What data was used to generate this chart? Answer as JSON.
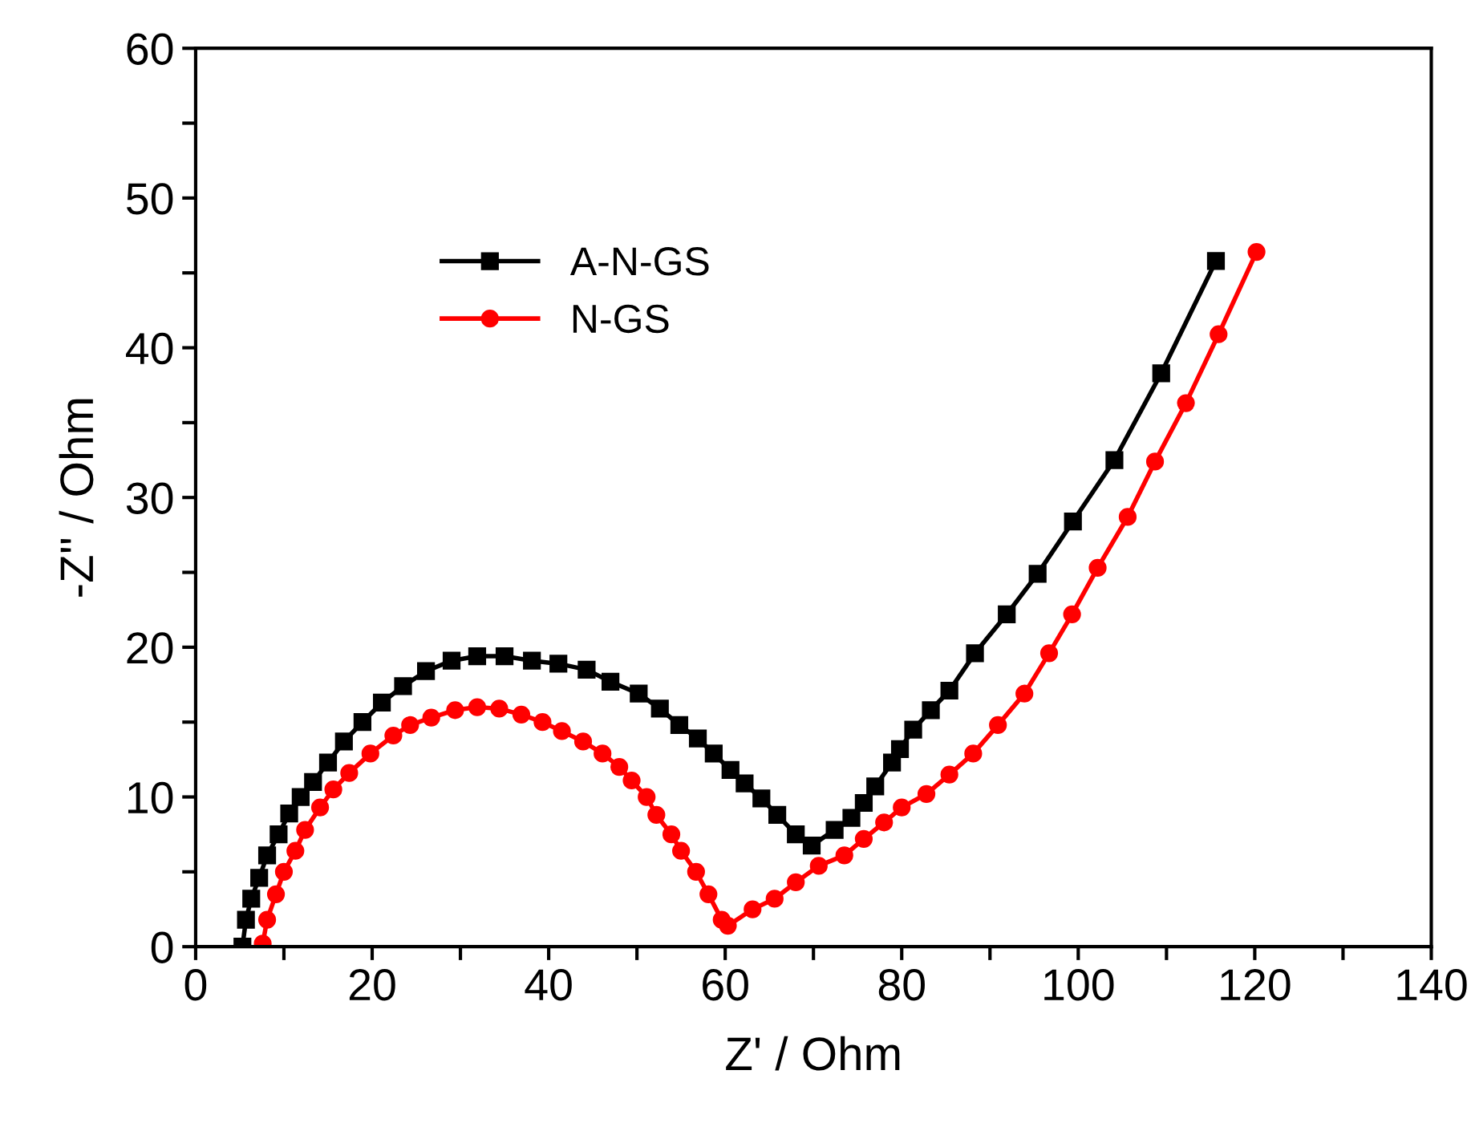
{
  "chart_data": {
    "type": "line",
    "xlabel": "Z' / Ohm",
    "ylabel": "-Z'' / Ohm",
    "xlim": [
      0,
      140
    ],
    "ylim": [
      0,
      60
    ],
    "xticks": [
      0,
      {
        "value": 10,
        "label": null
      },
      20,
      {
        "value": 30,
        "label": null
      },
      40,
      {
        "value": 50,
        "label": null
      },
      60,
      {
        "value": 70,
        "label": null
      },
      80,
      {
        "value": 90,
        "label": null
      },
      100,
      {
        "value": 110,
        "label": null
      },
      120,
      {
        "value": 130,
        "label": null
      },
      140
    ],
    "yticks": [
      0,
      {
        "value": 5,
        "label": null
      },
      10,
      {
        "value": 15,
        "label": null
      },
      20,
      {
        "value": 25,
        "label": null
      },
      30,
      {
        "value": 35,
        "label": null
      },
      40,
      {
        "value": 45,
        "label": null
      },
      50,
      {
        "value": 55,
        "label": null
      },
      60
    ],
    "grid": false,
    "legend": "top left",
    "series": [
      {
        "name": "A-N-GS",
        "color": "#000000",
        "marker": "square",
        "x": [
          5.3,
          5.7,
          6.3,
          7.2,
          8.1,
          9.4,
          10.6,
          11.9,
          13.3,
          15,
          16.8,
          18.9,
          21.1,
          23.5,
          26.1,
          29,
          31.9,
          35,
          38.1,
          41.1,
          44.3,
          47,
          50.2,
          52.6,
          54.8,
          56.9,
          58.7,
          60.6,
          62.2,
          64.1,
          65.9,
          68,
          69.8,
          72.4,
          74.3,
          75.7,
          77,
          78.9,
          79.8,
          81.3,
          83.3,
          85.4,
          88.3,
          91.9,
          95.4,
          99.4,
          104.1,
          109.4,
          115.6
        ],
        "values": [
          0,
          1.8,
          3.2,
          4.6,
          6.1,
          7.5,
          8.9,
          10,
          11,
          12.3,
          13.7,
          15,
          16.3,
          17.4,
          18.4,
          19.1,
          19.4,
          19.4,
          19.1,
          18.9,
          18.5,
          17.7,
          16.9,
          15.9,
          14.8,
          13.9,
          12.9,
          11.8,
          10.9,
          9.9,
          8.8,
          7.5,
          6.75,
          7.8,
          8.6,
          9.6,
          10.7,
          12.3,
          13.2,
          14.5,
          15.8,
          17.1,
          19.6,
          22.2,
          24.9,
          28.4,
          32.5,
          38.3,
          45.8
        ]
      },
      {
        "name": "N-GS",
        "color": "#ff0000",
        "marker": "circle",
        "x": [
          7.6,
          8.1,
          9.1,
          10,
          11.3,
          12.4,
          14.1,
          15.6,
          17.4,
          19.8,
          22.4,
          24.3,
          26.7,
          29.4,
          31.9,
          34.4,
          36.9,
          39.3,
          41.5,
          43.9,
          46.1,
          48,
          49.4,
          51.1,
          52.2,
          53.9,
          55,
          56.7,
          58.1,
          59.6,
          60.3,
          63.1,
          65.6,
          68,
          70.6,
          73.5,
          75.7,
          78,
          80,
          82.8,
          85.4,
          88.1,
          90.9,
          93.9,
          96.7,
          99.3,
          102.2,
          105.6,
          108.7,
          112.2,
          115.9,
          120.2
        ],
        "values": [
          0.2,
          1.8,
          3.5,
          5,
          6.4,
          7.8,
          9.3,
          10.5,
          11.6,
          12.9,
          14.1,
          14.8,
          15.3,
          15.8,
          16,
          15.9,
          15.5,
          15,
          14.4,
          13.7,
          12.9,
          12,
          11.1,
          10,
          8.8,
          7.5,
          6.4,
          5,
          3.5,
          1.8,
          1.4,
          2.5,
          3.2,
          4.3,
          5.4,
          6.1,
          7.2,
          8.3,
          9.3,
          10.2,
          11.5,
          12.9,
          14.8,
          16.9,
          19.6,
          22.2,
          25.3,
          28.7,
          32.4,
          36.3,
          40.9,
          46.4
        ]
      }
    ]
  }
}
